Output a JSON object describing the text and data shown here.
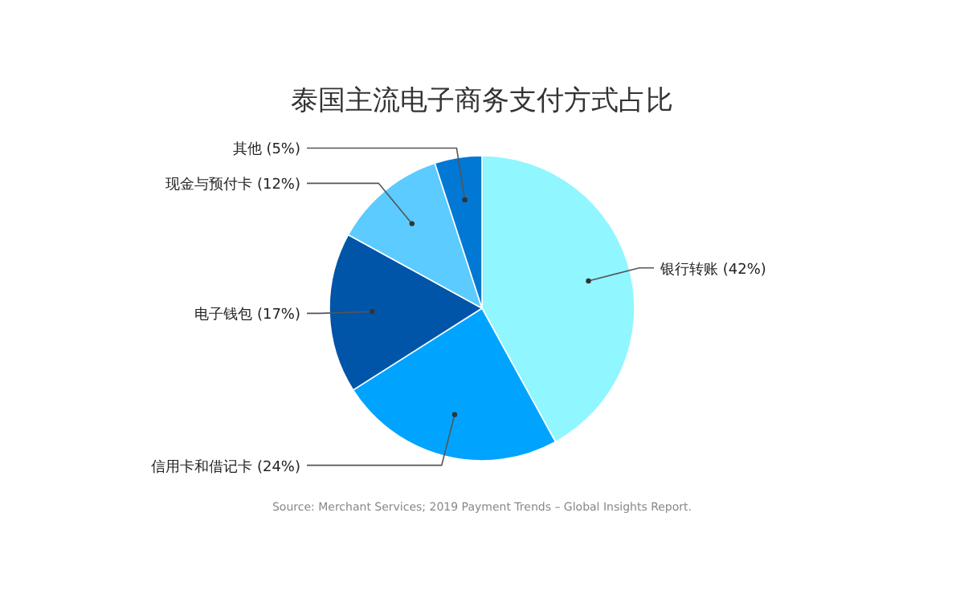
{
  "chart_data": {
    "type": "pie",
    "title": "泰国主流电子商务支付方式占比",
    "categories": [
      "银行转账 (42%)",
      "信用卡和借记卡 (24%)",
      "电子钱包 (17%)",
      "现金与预付卡 (12%)",
      "其他 (5%)"
    ],
    "values": [
      42,
      24,
      17,
      12,
      5
    ],
    "colors": [
      "#90f6ff",
      "#00a4ff",
      "#0055a8",
      "#5ccbff",
      "#0078d4"
    ],
    "annotations": [
      "Source: Merchant Services; 2019 Payment Trends – Global Insights Report."
    ]
  }
}
